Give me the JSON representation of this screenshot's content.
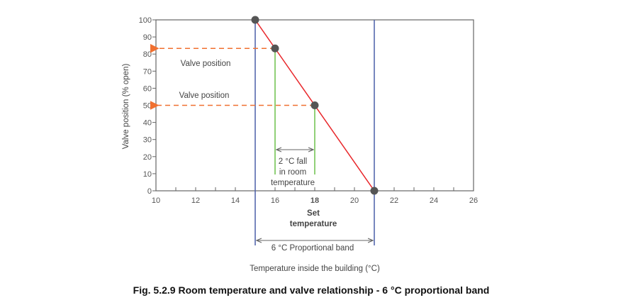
{
  "caption": "Fig. 5.2.9 Room temperature and valve relationship - 6 °C proportional band",
  "chart_data": {
    "type": "line",
    "xlabel": "Temperature inside the building (°C)",
    "ylabel": "Valve position (% open)",
    "xlim": [
      10,
      26
    ],
    "ylim": [
      0,
      100
    ],
    "x_ticks": [
      10,
      12,
      14,
      16,
      18,
      20,
      22,
      24,
      26
    ],
    "y_ticks": [
      0,
      10,
      20,
      30,
      40,
      50,
      60,
      70,
      80,
      90,
      100
    ],
    "grid": false,
    "series": [
      {
        "x": [
          15,
          21
        ],
        "y": [
          100,
          0
        ],
        "color": "#e8262a"
      }
    ],
    "points": [
      {
        "x": 15,
        "y": 100
      },
      {
        "x": 16,
        "y": 83.3
      },
      {
        "x": 18,
        "y": 50
      },
      {
        "x": 21,
        "y": 0
      }
    ],
    "band_lines": {
      "x": [
        15,
        21
      ],
      "color": "#4a5fa8"
    },
    "guide_lines": {
      "x": [
        16,
        18
      ],
      "color": "#6cc04a"
    },
    "arrow_color": "#f07030",
    "annotations": {
      "valve_position_1": "Valve position",
      "valve_position_2": "Valve position",
      "fall_line1": "2 °C fall",
      "fall_line2": "in room",
      "fall_line3": "temperature",
      "set_line1": "Set",
      "set_line2": "temperature",
      "band_label": "6 °C Proportional band"
    }
  }
}
